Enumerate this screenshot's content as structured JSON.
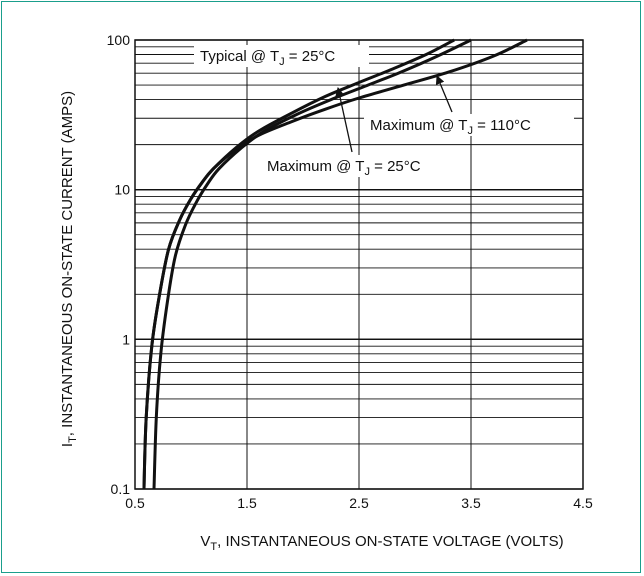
{
  "colors": {
    "frame": "#1a9e8c",
    "ink": "#111111",
    "background": "#ffffff"
  },
  "chart_data": {
    "type": "line",
    "xlabel": {
      "main": "V",
      "sub": "T",
      "rest": ", INSTANTANEOUS ON-STATE VOLTAGE (VOLTS)"
    },
    "ylabel": {
      "main": "I",
      "sub": "T",
      "rest": ", INSTANTANEOUS ON-STATE CURRENT (AMPS)"
    },
    "x_axis": {
      "scale": "linear",
      "range": [
        0.5,
        4.5
      ],
      "ticks": [
        0.5,
        1.5,
        2.5,
        3.5,
        4.5
      ],
      "tick_labels": [
        "0.5",
        "1.5",
        "2.5",
        "3.5",
        "4.5"
      ]
    },
    "y_axis": {
      "scale": "log",
      "range": [
        0.1,
        100
      ],
      "ticks": [
        0.1,
        1,
        10,
        100
      ],
      "tick_labels": [
        "0.1",
        "1",
        "10",
        "100"
      ]
    },
    "grid": {
      "x_major": true,
      "y_log_minor": true
    },
    "annotations": [
      {
        "id": "typ25",
        "prefix": "Typical @ T",
        "sub": "J",
        "suffix": " = 25°C"
      },
      {
        "id": "max110",
        "prefix": "Maximum @ T",
        "sub": "J",
        "suffix": " = 110°C"
      },
      {
        "id": "max25",
        "prefix": "Maximum @ T",
        "sub": "J",
        "suffix": " = 25°C"
      }
    ],
    "series": [
      {
        "id": "typical_25C",
        "x": [
          0.58,
          0.6,
          0.65,
          0.72,
          0.8,
          0.9,
          1.0,
          1.1,
          1.2,
          1.4,
          1.6,
          1.9,
          2.2,
          2.5,
          2.8,
          3.1,
          3.35
        ],
        "y": [
          0.1,
          0.3,
          0.9,
          2.0,
          4.0,
          6.3,
          8.7,
          11.2,
          13.8,
          19.0,
          24.5,
          32.5,
          42.0,
          52.0,
          64.0,
          80.0,
          100.0
        ]
      },
      {
        "id": "maximum_25C",
        "x": [
          0.67,
          0.69,
          0.73,
          0.79,
          0.86,
          0.95,
          1.05,
          1.15,
          1.25,
          1.45,
          1.65,
          1.95,
          2.25,
          2.55,
          2.85,
          3.2,
          3.5
        ],
        "y": [
          0.1,
          0.3,
          0.8,
          1.8,
          3.6,
          5.8,
          8.3,
          11.0,
          13.8,
          19.0,
          24.5,
          32.0,
          40.0,
          49.0,
          60.0,
          78.0,
          100.0
        ]
      },
      {
        "id": "maximum_110C",
        "x": [
          0.58,
          0.6,
          0.65,
          0.72,
          0.8,
          0.9,
          1.0,
          1.1,
          1.2,
          1.4,
          1.6,
          1.9,
          2.2,
          2.5,
          2.9,
          3.3,
          3.7,
          4.0
        ],
        "y": [
          0.1,
          0.3,
          0.9,
          2.0,
          4.0,
          6.3,
          8.7,
          11.2,
          13.8,
          18.5,
          23.0,
          28.5,
          34.5,
          41.0,
          50.0,
          61.0,
          78.0,
          100.0
        ]
      }
    ]
  }
}
